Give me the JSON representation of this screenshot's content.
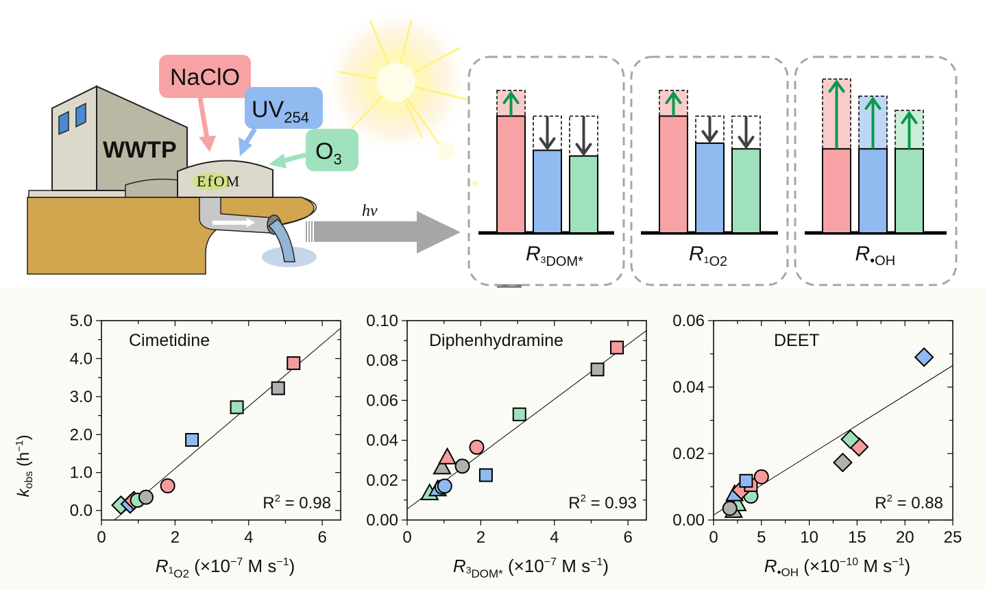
{
  "schematic": {
    "plant_label": "WWTP",
    "efom_label": "EfOM",
    "treatments": [
      {
        "name": "NaClO",
        "sub": "",
        "color": "#f7a3a5"
      },
      {
        "name": "UV",
        "sub": "254",
        "color": "#90baf0"
      },
      {
        "name": "O",
        "sub": "3",
        "color": "#9fe1bd"
      }
    ],
    "light_label": "hv",
    "panels": [
      {
        "label_main": "R",
        "label_sup": "3",
        "label_sub": "DOM*",
        "bars": [
          {
            "treatment": "NaClO",
            "base": 0.82,
            "change_to": 1.0,
            "direction": "up"
          },
          {
            "treatment": "UV254",
            "base": 0.58,
            "change_to": 0.82,
            "direction": "down"
          },
          {
            "treatment": "O3",
            "base": 0.54,
            "change_to": 0.82,
            "direction": "down"
          }
        ]
      },
      {
        "label_main": "R",
        "label_sup": "1",
        "label_sub": "O2",
        "bars": [
          {
            "treatment": "NaClO",
            "base": 0.82,
            "change_to": 1.0,
            "direction": "up"
          },
          {
            "treatment": "UV254",
            "base": 0.63,
            "change_to": 0.82,
            "direction": "down"
          },
          {
            "treatment": "O3",
            "base": 0.59,
            "change_to": 0.82,
            "direction": "down"
          }
        ]
      },
      {
        "label_main": "R",
        "label_sup": "",
        "label_sub": "•OH",
        "bars": [
          {
            "treatment": "NaClO",
            "base": 0.59,
            "change_to": 1.08,
            "direction": "up"
          },
          {
            "treatment": "UV254",
            "base": 0.59,
            "change_to": 0.96,
            "direction": "up"
          },
          {
            "treatment": "O3",
            "base": 0.59,
            "change_to": 0.86,
            "direction": "up"
          }
        ]
      }
    ],
    "colors": {
      "pink": "#f7a3a5",
      "pink_light": "#f9cccc",
      "blue": "#90baf0",
      "blue_light": "#bfd7f5",
      "green": "#9fe1bd",
      "green_light": "#c9edd8",
      "arrow_up": "#0a9a4a",
      "arrow_down": "#404040",
      "gray": "#b3b3b3"
    }
  },
  "chart_data": [
    {
      "type": "scatter",
      "title": "Cimetidine",
      "xlabel": "R1O2 (×10−7 M s−1)",
      "xlabel_parts": {
        "main": "R",
        "sup_left": "1",
        "sub": "O2",
        "rest": " (×10",
        "exp": "−7",
        "unit": " M s",
        "unit_exp": "−1",
        "close": ")"
      },
      "ylabel": "kobs (h−1)",
      "xlim": [
        0,
        6.5
      ],
      "ylim": [
        -0.25,
        5.0
      ],
      "xticks": [
        0,
        2,
        4,
        6
      ],
      "xtick_labels": [
        "0",
        "2",
        "4",
        "6"
      ],
      "yticks": [
        0,
        1,
        2,
        3,
        4,
        5
      ],
      "ytick_labels": [
        "0.0",
        "1.0",
        "2.0",
        "3.0",
        "4.0",
        "5.0"
      ],
      "r2_label": "R",
      "r2_value": " = 0.98",
      "fit": {
        "x": [
          0.35,
          6.5
        ],
        "y": [
          -0.25,
          4.8
        ]
      },
      "points": [
        {
          "x": 5.22,
          "y": 3.88,
          "shape": "square",
          "color": "pink"
        },
        {
          "x": 4.8,
          "y": 3.22,
          "shape": "square",
          "color": "gray"
        },
        {
          "x": 3.68,
          "y": 2.72,
          "shape": "square",
          "color": "green"
        },
        {
          "x": 2.46,
          "y": 1.86,
          "shape": "square",
          "color": "blue"
        },
        {
          "x": 1.8,
          "y": 0.65,
          "shape": "circle",
          "color": "pink"
        },
        {
          "x": 1.21,
          "y": 0.35,
          "shape": "circle",
          "color": "gray"
        },
        {
          "x": 0.98,
          "y": 0.27,
          "shape": "circle",
          "color": "green"
        },
        {
          "x": 0.88,
          "y": 0.26,
          "shape": "diamond",
          "color": "pink"
        },
        {
          "x": 0.78,
          "y": 0.17,
          "shape": "diamond",
          "color": "blue"
        },
        {
          "x": 0.53,
          "y": 0.14,
          "shape": "diamond",
          "color": "green"
        }
      ]
    },
    {
      "type": "scatter",
      "title": "Diphenhydramine",
      "xlabel": "R3DOM* (×10−7 M s−1)",
      "xlabel_parts": {
        "main": "R",
        "sup_left": "3",
        "sub": "DOM*",
        "rest": " (×10",
        "exp": "−7",
        "unit": " M s",
        "unit_exp": "−1",
        "close": ")"
      },
      "ylabel": "",
      "xlim": [
        0,
        6.5
      ],
      "ylim": [
        0,
        0.1
      ],
      "xticks": [
        0,
        2,
        4,
        6
      ],
      "xtick_labels": [
        "0",
        "2",
        "4",
        "6"
      ],
      "yticks": [
        0,
        0.02,
        0.04,
        0.06,
        0.08,
        0.1
      ],
      "ytick_labels": [
        "0.00",
        "0.02",
        "0.04",
        "0.06",
        "0.08",
        "0.10"
      ],
      "r2_label": "R",
      "r2_value": " = 0.93",
      "fit": {
        "x": [
          0,
          6.5
        ],
        "y": [
          0.0055,
          0.095
        ]
      },
      "points": [
        {
          "x": 5.7,
          "y": 0.0865,
          "shape": "square",
          "color": "pink"
        },
        {
          "x": 5.17,
          "y": 0.0755,
          "shape": "square",
          "color": "gray"
        },
        {
          "x": 3.05,
          "y": 0.053,
          "shape": "square",
          "color": "green"
        },
        {
          "x": 2.14,
          "y": 0.0225,
          "shape": "square",
          "color": "blue"
        },
        {
          "x": 1.89,
          "y": 0.0365,
          "shape": "circle",
          "color": "pink"
        },
        {
          "x": 1.5,
          "y": 0.027,
          "shape": "circle",
          "color": "gray"
        },
        {
          "x": 1.09,
          "y": 0.031,
          "shape": "triangle",
          "color": "pink"
        },
        {
          "x": 0.95,
          "y": 0.026,
          "shape": "triangle",
          "color": "gray"
        },
        {
          "x": 1.02,
          "y": 0.017,
          "shape": "circle",
          "color": "blue"
        },
        {
          "x": 0.95,
          "y": 0.0165,
          "shape": "circle",
          "color": "green"
        },
        {
          "x": 0.83,
          "y": 0.015,
          "shape": "triangle",
          "color": "blue"
        },
        {
          "x": 0.61,
          "y": 0.013,
          "shape": "triangle",
          "color": "green"
        }
      ]
    },
    {
      "type": "scatter",
      "title": "DEET",
      "xlabel": "R•OH (×10−10 M s−1)",
      "xlabel_parts": {
        "main": "R",
        "sup_left": "",
        "sub": "•OH",
        "rest": " (×10",
        "exp": "−10",
        "unit": " M s",
        "unit_exp": "−1",
        "close": ")"
      },
      "ylabel": "",
      "xlim": [
        0,
        25
      ],
      "ylim": [
        0,
        0.06
      ],
      "xticks": [
        0,
        5,
        10,
        15,
        20,
        25
      ],
      "xtick_labels": [
        "0",
        "5",
        "10",
        "15",
        "20",
        "25"
      ],
      "yticks": [
        0,
        0.02,
        0.04,
        0.06
      ],
      "ytick_labels": [
        "0.00",
        "0.02",
        "0.04",
        "0.06"
      ],
      "r2_label": "R",
      "r2_value": " = 0.88",
      "fit": {
        "x": [
          0,
          25
        ],
        "y": [
          0.0015,
          0.0465
        ]
      },
      "points": [
        {
          "x": 22.0,
          "y": 0.049,
          "shape": "diamond",
          "color": "blue"
        },
        {
          "x": 14.3,
          "y": 0.0243,
          "shape": "diamond",
          "color": "green"
        },
        {
          "x": 15.2,
          "y": 0.022,
          "shape": "diamond",
          "color": "pink"
        },
        {
          "x": 13.5,
          "y": 0.0173,
          "shape": "diamond",
          "color": "gray"
        },
        {
          "x": 5.0,
          "y": 0.013,
          "shape": "circle",
          "color": "pink"
        },
        {
          "x": 3.4,
          "y": 0.0118,
          "shape": "square",
          "color": "blue"
        },
        {
          "x": 3.9,
          "y": 0.0105,
          "shape": "square",
          "color": "pink"
        },
        {
          "x": 2.9,
          "y": 0.009,
          "shape": "diamond",
          "color": "pink"
        },
        {
          "x": 3.9,
          "y": 0.0072,
          "shape": "circle",
          "color": "green"
        },
        {
          "x": 2.2,
          "y": 0.0075,
          "shape": "triangle",
          "color": "blue"
        },
        {
          "x": 1.7,
          "y": 0.0035,
          "shape": "circle",
          "color": "gray"
        },
        {
          "x": 2.5,
          "y": 0.0045,
          "shape": "triangle",
          "color": "green"
        },
        {
          "x": 2.1,
          "y": 0.0025,
          "shape": "triangle",
          "color": "gray"
        }
      ]
    }
  ],
  "shared_ylabel": {
    "main": "k",
    "sub": "obs",
    "rest": " (h",
    "exp": "−1",
    "close": ")"
  },
  "point_colors": {
    "pink": "#f79c9c",
    "blue": "#8fb9f0",
    "green": "#9fe1bd",
    "gray": "#b0b0b0"
  }
}
